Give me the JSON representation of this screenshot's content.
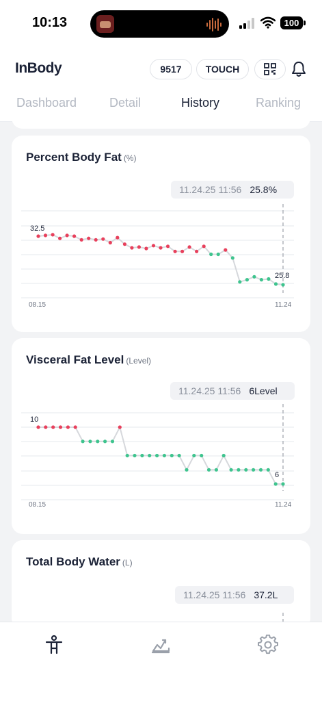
{
  "status_bar": {
    "time": "10:13",
    "battery": "100"
  },
  "header": {
    "logo": "InBody",
    "pills": {
      "id": "9517",
      "touch": "TOUCH"
    },
    "icons": {
      "qr": "qr-code-icon",
      "bell": "bell-icon"
    }
  },
  "tabs": {
    "dashboard": "Dashboard",
    "detail": "Detail",
    "history": "History",
    "ranking": "Ranking",
    "active": "History"
  },
  "cards": [
    {
      "title": "Percent Body Fat",
      "unit": "(%)",
      "tooltip_date": "11.24.25 11:56",
      "tooltip_value": "25.8%",
      "start_label": "08.15",
      "end_label": "11.24",
      "first_label": "32.5",
      "last_label": "25.8"
    },
    {
      "title": "Visceral Fat Level",
      "unit": "(Level)",
      "tooltip_date": "11.24.25 11:56",
      "tooltip_value": "6Level",
      "start_label": "08.15",
      "end_label": "11.24",
      "first_label": "10",
      "last_label": "6"
    },
    {
      "title": "Total Body Water",
      "unit": "(L)",
      "tooltip_date": "11.24.25 11:56",
      "tooltip_value": "37.2L"
    }
  ],
  "colors": {
    "red": "#e8405c",
    "green": "#3ec48e",
    "line": "#d6d8dc",
    "grid": "#e6e8ec",
    "dash": "#b0b4bb"
  },
  "chart_data": [
    {
      "type": "line",
      "title": "Percent Body Fat",
      "x_start": "08.15",
      "x_end": "11.24",
      "values": [
        32.5,
        32.6,
        32.7,
        32.2,
        32.6,
        32.5,
        32.0,
        32.2,
        32.0,
        32.1,
        31.6,
        32.3,
        31.4,
        30.9,
        31.0,
        30.8,
        31.2,
        30.9,
        31.1,
        30.4,
        30.4,
        31.0,
        30.4,
        31.1,
        30.0,
        30.0,
        30.6,
        29.5,
        26.2,
        26.5,
        26.9,
        26.5,
        26.6,
        25.9,
        25.8
      ],
      "status": [
        "r",
        "r",
        "r",
        "r",
        "r",
        "r",
        "r",
        "r",
        "r",
        "r",
        "r",
        "r",
        "r",
        "r",
        "r",
        "r",
        "r",
        "r",
        "r",
        "r",
        "r",
        "r",
        "r",
        "r",
        "g",
        "g",
        "r",
        "g",
        "g",
        "g",
        "g",
        "g",
        "g",
        "g",
        "g"
      ]
    },
    {
      "type": "line",
      "title": "Visceral Fat Level",
      "x_start": "08.15",
      "x_end": "11.24",
      "values": [
        10,
        10,
        10,
        10,
        10,
        10,
        9,
        9,
        9,
        9,
        9,
        10,
        8,
        8,
        8,
        8,
        8,
        8,
        8,
        8,
        7,
        8,
        8,
        7,
        7,
        8,
        7,
        7,
        7,
        7,
        7,
        7,
        6,
        6
      ],
      "status": [
        "r",
        "r",
        "r",
        "r",
        "r",
        "r",
        "g",
        "g",
        "g",
        "g",
        "g",
        "r",
        "g",
        "g",
        "g",
        "g",
        "g",
        "g",
        "g",
        "g",
        "g",
        "g",
        "g",
        "g",
        "g",
        "g",
        "g",
        "g",
        "g",
        "g",
        "g",
        "g",
        "g",
        "g"
      ]
    }
  ]
}
